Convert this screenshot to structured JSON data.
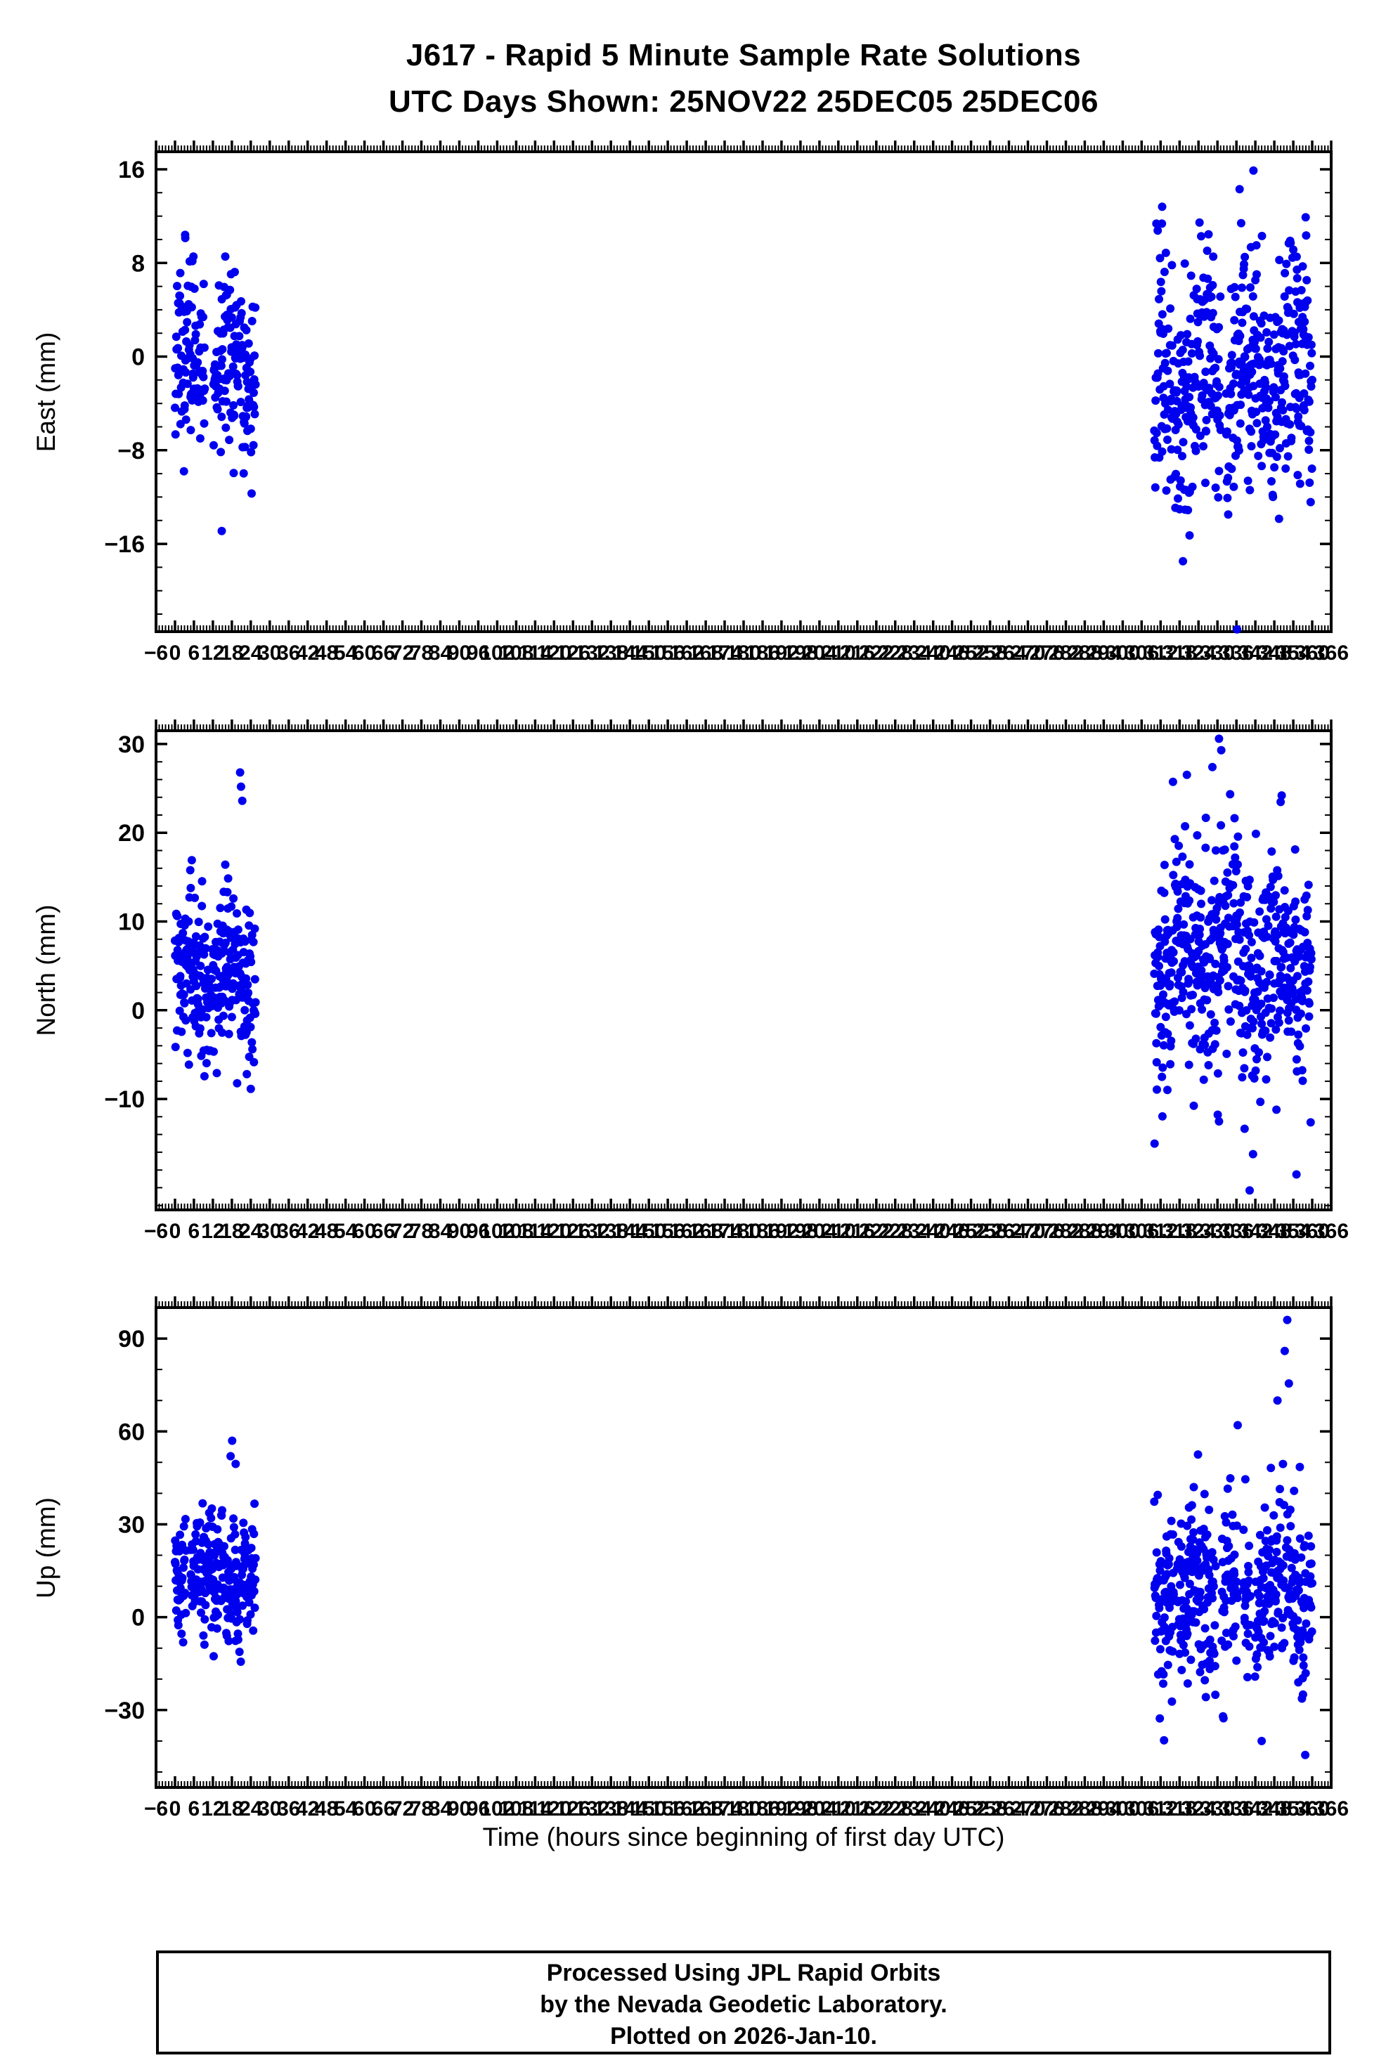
{
  "footer": {
    "lines": [
      "Processed Using JPL Rapid Orbits",
      "by the Nevada Geodetic Laboratory.",
      "Plotted on 2026-Jan-10."
    ]
  },
  "chart_data": {
    "type": "scatter",
    "title": "J617 - Rapid 5 Minute Sample Rate Solutions",
    "subtitle": "UTC Days Shown:  25NOV22 25DEC05 25DEC06",
    "point_color": "#0000ee",
    "seed": 7,
    "grid": "off",
    "legend": "none",
    "x": {
      "label": "Time (hours since beginning of first day UTC)",
      "lim": [
        -6,
        366
      ],
      "major_tick": 6,
      "minor_tick": 1,
      "tick_label_step": 6,
      "days_shown_hours": [
        [
          0,
          24
        ],
        [
          312,
          336
        ],
        [
          336,
          360
        ]
      ]
    },
    "subplots": [
      {
        "name": "east",
        "ylabel": "East (mm)",
        "ylim": [
          -23.5,
          17.5
        ],
        "yticks": [
          -16,
          -8,
          0,
          8,
          16
        ],
        "yminor": 2,
        "clusters": [
          {
            "x0": 0,
            "x1": 25.5,
            "dt": 0.08333,
            "keep": 0.9,
            "gap_p": 0.006,
            "gap_len": 18,
            "center": -1,
            "sd": 3.8,
            "wander": 2.2,
            "ymin": -15.5,
            "ymax": 10.5
          },
          {
            "x0": 310,
            "x1": 360,
            "dt": 0.08333,
            "keep": 0.88,
            "gap_p": 0.008,
            "gap_len": 22,
            "center": -2,
            "sd": 5.0,
            "wander": 3.0,
            "ymin": -20.5,
            "ymax": 15.5
          }
        ],
        "outliers": [
          [
            336.2,
            -23.3
          ],
          [
            341.4,
            15.9
          ],
          [
            337.0,
            14.3
          ],
          [
            312.5,
            12.8
          ],
          [
            3.2,
            10.4
          ],
          [
            14.8,
            -14.9
          ]
        ]
      },
      {
        "name": "north",
        "ylabel": "North (mm)",
        "ylim": [
          -22.5,
          31.5
        ],
        "yticks": [
          -10,
          0,
          10,
          20,
          30
        ],
        "yminor": 2,
        "clusters": [
          {
            "x0": 0,
            "x1": 25.5,
            "dt": 0.08333,
            "keep": 0.9,
            "gap_p": 0.006,
            "gap_len": 18,
            "center": 3.5,
            "sd": 4.5,
            "wander": 2.5,
            "ymin": -15,
            "ymax": 21.5
          },
          {
            "x0": 310,
            "x1": 360,
            "dt": 0.08333,
            "keep": 0.88,
            "gap_p": 0.008,
            "gap_len": 22,
            "center": 5.0,
            "sd": 6.5,
            "wander": 3.5,
            "ymin": -17,
            "ymax": 28.5
          }
        ],
        "outliers": [
          [
            20.6,
            26.8
          ],
          [
            20.9,
            25.2
          ],
          [
            21.3,
            23.6
          ],
          [
            330.5,
            30.6
          ],
          [
            331.2,
            29.3
          ],
          [
            328.4,
            27.4
          ],
          [
            355.0,
            -18.5
          ],
          [
            340.2,
            -20.3
          ]
        ]
      },
      {
        "name": "up",
        "ylabel": "Up (mm)",
        "ylim": [
          -55,
          100
        ],
        "yticks": [
          -30,
          0,
          30,
          60,
          90
        ],
        "yminor": 10,
        "clusters": [
          {
            "x0": 0,
            "x1": 25.5,
            "dt": 0.08333,
            "keep": 0.9,
            "gap_p": 0.006,
            "gap_len": 18,
            "center": 14,
            "sd": 10,
            "wander": 5,
            "ymin": -29,
            "ymax": 47
          },
          {
            "x0": 310,
            "x1": 360,
            "dt": 0.08333,
            "keep": 0.88,
            "gap_p": 0.008,
            "gap_len": 22,
            "center": 8,
            "sd": 14,
            "wander": 7,
            "ymin": -44,
            "ymax": 74
          }
        ],
        "outliers": [
          [
            18.1,
            57
          ],
          [
            17.6,
            52
          ],
          [
            19.2,
            49.5
          ],
          [
            352.1,
            96
          ],
          [
            351.3,
            86
          ],
          [
            352.6,
            75.5
          ],
          [
            349.0,
            70
          ],
          [
            336.4,
            62
          ],
          [
            357.8,
            -44.5
          ],
          [
            344.0,
            -40
          ]
        ]
      }
    ]
  }
}
